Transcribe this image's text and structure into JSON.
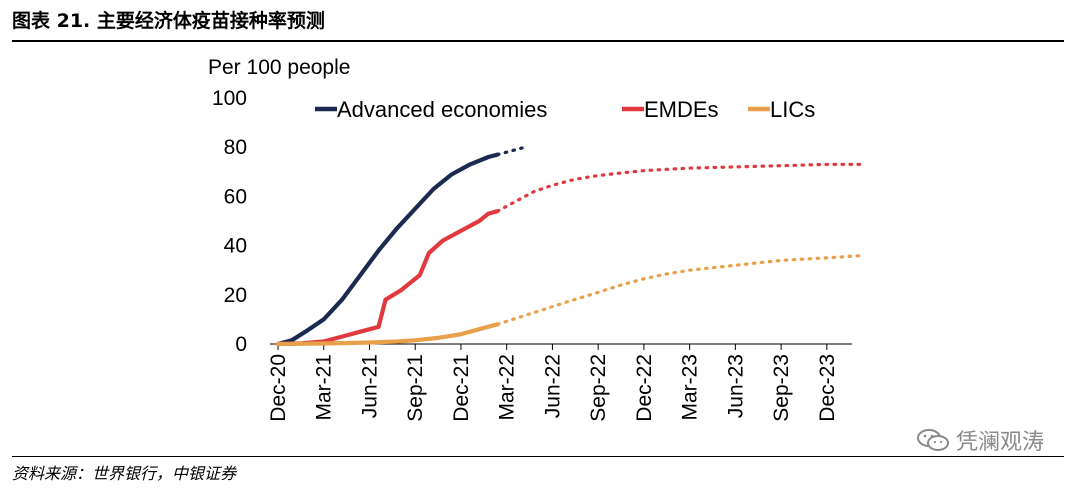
{
  "header": {
    "title": "图表 21. 主要经济体疫苗接种率预测"
  },
  "footer": {
    "source": "资料来源：世界银行，中银证券",
    "watermark": "凭澜观涛"
  },
  "chart_data": {
    "type": "line",
    "unit_label": "Per 100 people",
    "categories": [
      "Dec-20",
      "Mar-21",
      "Jun-21",
      "Sep-21",
      "Dec-21",
      "Mar-22",
      "Jun-22",
      "Sep-22",
      "Dec-22",
      "Mar-23",
      "Jun-23",
      "Sep-23",
      "Dec-23"
    ],
    "ylim": [
      0,
      100
    ],
    "yticks": [
      0,
      20,
      40,
      60,
      80,
      100
    ],
    "legend_position": "top",
    "series": [
      {
        "name": "Advanced economies",
        "color": "#1b2a4e",
        "actual": [
          [
            0,
            0
          ],
          [
            0.3,
            1.5
          ],
          [
            0.6,
            5
          ],
          [
            1,
            10
          ],
          [
            1.4,
            18
          ],
          [
            1.8,
            28
          ],
          [
            2.2,
            38
          ],
          [
            2.6,
            47
          ],
          [
            3,
            55
          ],
          [
            3.4,
            63
          ],
          [
            3.8,
            69
          ],
          [
            4.2,
            73
          ],
          [
            4.6,
            76
          ],
          [
            4.8,
            77
          ]
        ],
        "projected": [
          [
            4.8,
            77
          ],
          [
            5.1,
            78.5
          ],
          [
            5.4,
            80
          ]
        ]
      },
      {
        "name": "EMDEs",
        "color": "#e03a3e",
        "actual": [
          [
            0,
            0
          ],
          [
            0.5,
            0.3
          ],
          [
            1,
            1
          ],
          [
            1.4,
            3
          ],
          [
            1.8,
            5
          ],
          [
            2.2,
            7
          ],
          [
            2.35,
            18
          ],
          [
            2.7,
            22
          ],
          [
            3.1,
            28
          ],
          [
            3.3,
            37
          ],
          [
            3.6,
            42
          ],
          [
            4.0,
            46
          ],
          [
            4.4,
            50
          ],
          [
            4.6,
            53
          ],
          [
            4.8,
            54
          ]
        ],
        "projected": [
          [
            4.8,
            54
          ],
          [
            5.2,
            58
          ],
          [
            5.6,
            62
          ],
          [
            6.0,
            64.5
          ],
          [
            6.5,
            67
          ],
          [
            7,
            68.5
          ],
          [
            7.5,
            69.5
          ],
          [
            8,
            70.5
          ],
          [
            9,
            71.5
          ],
          [
            10,
            72
          ],
          [
            11,
            72.5
          ],
          [
            12,
            73
          ],
          [
            12.8,
            73
          ]
        ]
      },
      {
        "name": "LICs",
        "color": "#e8a04a",
        "actual": [
          [
            0,
            0
          ],
          [
            1,
            0.2
          ],
          [
            2,
            0.6
          ],
          [
            2.6,
            1
          ],
          [
            3,
            1.5
          ],
          [
            3.5,
            2.5
          ],
          [
            4,
            4
          ],
          [
            4.4,
            6
          ],
          [
            4.8,
            8
          ]
        ],
        "projected": [
          [
            4.8,
            8
          ],
          [
            5.3,
            11
          ],
          [
            5.8,
            14
          ],
          [
            6.3,
            17
          ],
          [
            7,
            21
          ],
          [
            7.5,
            24
          ],
          [
            8,
            26.5
          ],
          [
            8.5,
            28.5
          ],
          [
            9,
            30
          ],
          [
            9.5,
            31
          ],
          [
            10,
            32
          ],
          [
            10.5,
            33
          ],
          [
            11,
            34
          ],
          [
            11.5,
            34.5
          ],
          [
            12,
            35
          ],
          [
            12.8,
            36
          ]
        ]
      }
    ]
  }
}
